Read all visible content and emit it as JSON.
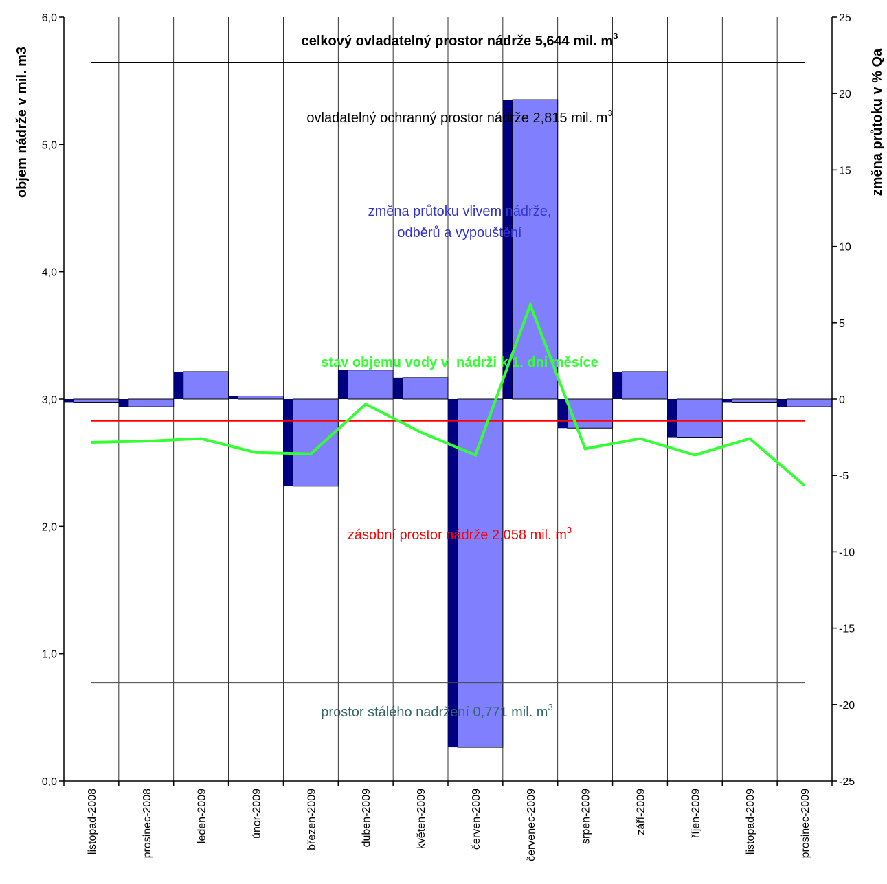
{
  "chart_data": {
    "type": "bar",
    "categories": [
      "listopad-2008",
      "prosinec-2008",
      "leden-2009",
      "únor-2009",
      "březen-2009",
      "duben-2009",
      "květen-2009",
      "červen-2009",
      "červenec-2009",
      "srpen-2009",
      "září-2009",
      "říjen-2009",
      "listopad-2009",
      "prosinec-2009"
    ],
    "left_axis": {
      "label": "objem nádrže v mil. m3",
      "ylim": [
        0,
        6
      ],
      "ticks": [
        "0,0",
        "1,0",
        "2,0",
        "3,0",
        "4,0",
        "5,0",
        "6,0"
      ]
    },
    "right_axis": {
      "label": "změna průtoku v % Qa",
      "ylim": [
        -25,
        25
      ],
      "ticks": [
        "-25",
        "-20",
        "-15",
        "-10",
        "-5",
        "0",
        "5",
        "10",
        "15",
        "20",
        "25"
      ]
    },
    "bar_series": {
      "name": "změna průtoku vlivem nádrže, odběrů a vypouštění",
      "axis": "right",
      "color": "#8080ff",
      "shade_color": "#000080",
      "values": [
        -0.2,
        -0.5,
        1.8,
        0.2,
        -5.7,
        1.9,
        1.4,
        -22.8,
        19.6,
        -1.9,
        1.8,
        -2.5,
        -0.2,
        -0.5
      ]
    },
    "line_series": {
      "name": "stav objemu vody v  nádrži k 1. dni měsíce",
      "axis": "left",
      "color": "#33ff33",
      "values": [
        2.66,
        2.67,
        2.69,
        2.58,
        2.57,
        2.96,
        2.74,
        2.56,
        3.74,
        2.61,
        2.69,
        2.56,
        2.69,
        2.32
      ]
    },
    "reference_lines": [
      {
        "label_main": "celkový ovladatelný prostor nádrže 5,644 mil. m",
        "label_sup": "3",
        "value": 5.644,
        "color": "#000000",
        "bold": true
      },
      {
        "label_main": "ovladatelný ochranný prostor nádrže 2,815 mil. m",
        "label_sup": "3",
        "color": "#000000",
        "bold": false
      },
      {
        "label_main": "zásobní prostor nádrže 2,058 mil. m",
        "label_sup": "3",
        "value": 2.829,
        "color": "#ff0000",
        "bold": false
      },
      {
        "label_main": "prostor stálého nadržení 0,771 mil. m",
        "label_sup": "3",
        "value": 0.771,
        "color": "#444444",
        "text_color": "#336666",
        "bold": false
      }
    ],
    "grid": {
      "vertical": true,
      "horizontal": false
    },
    "legend": "none"
  }
}
